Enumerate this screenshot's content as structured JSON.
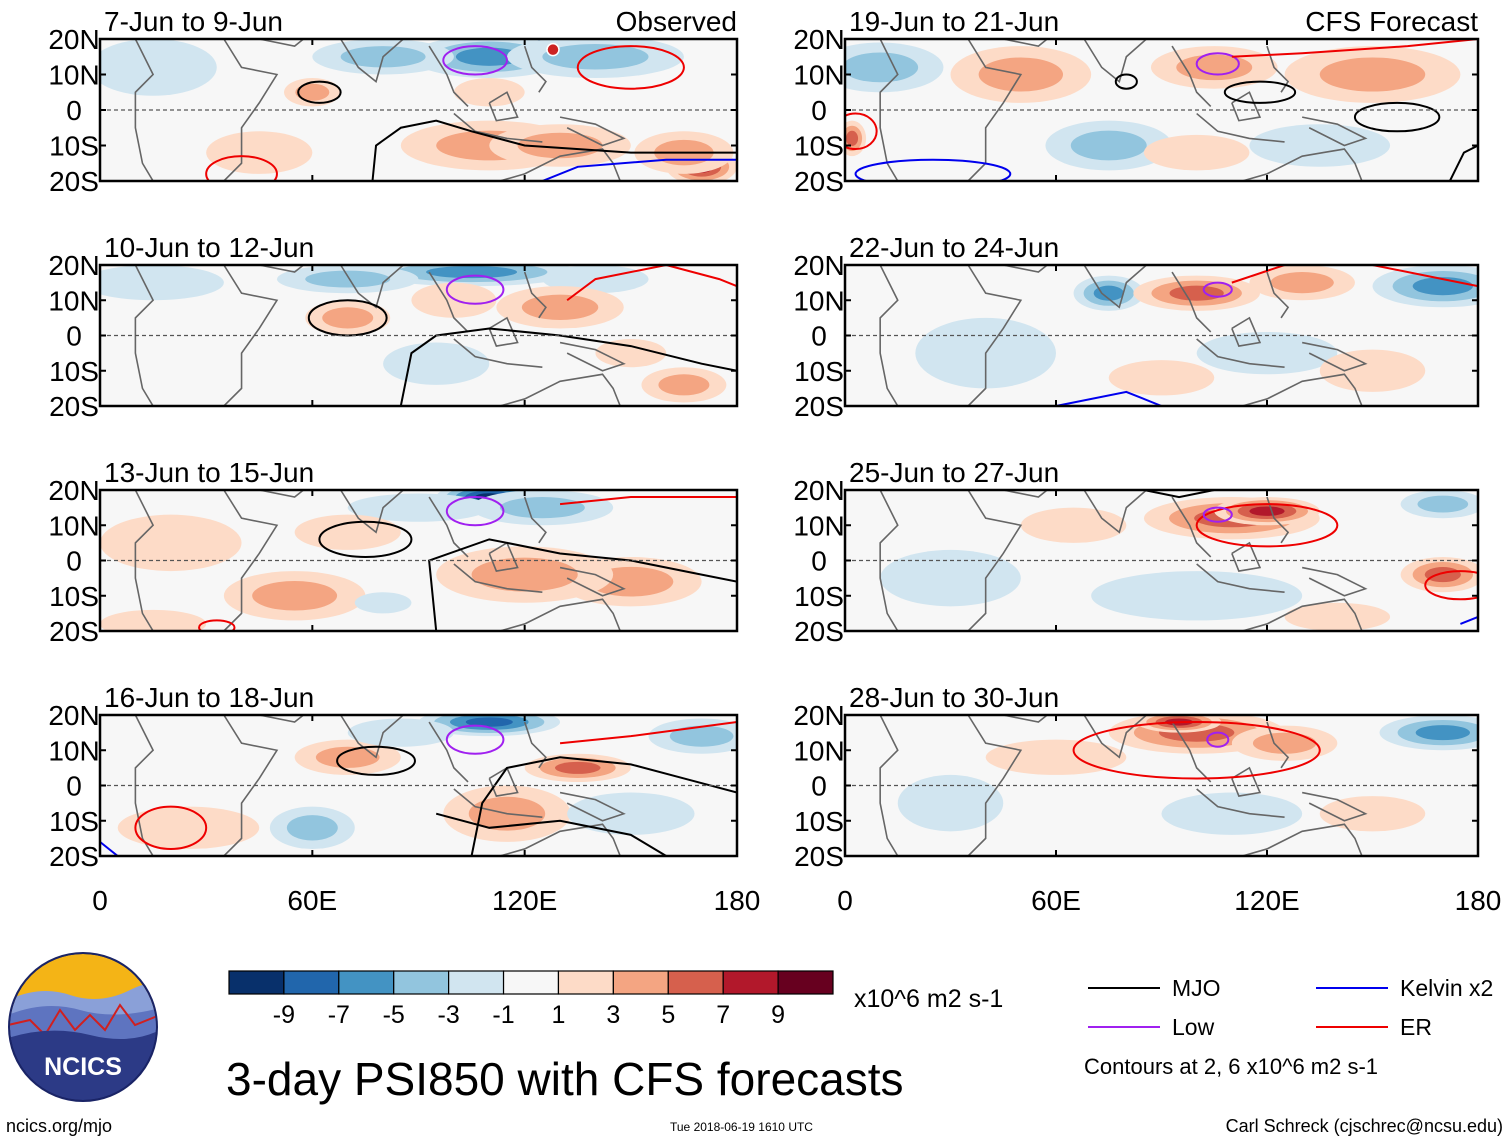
{
  "chart_data": {
    "type": "heatmap",
    "title": "3-day PSI850 with CFS forecasts",
    "variable": "PSI850",
    "units": "x10^6 m2 s-1",
    "observed_label": "Observed",
    "forecast_label": "CFS Forecast",
    "x_ticks": [
      "0",
      "60E",
      "120E",
      "180"
    ],
    "x_tick_values": [
      0,
      60,
      120,
      180
    ],
    "y_ticks": [
      "20N",
      "10N",
      "0",
      "10S",
      "20S"
    ],
    "y_tick_values": [
      20,
      10,
      0,
      -10,
      -20
    ],
    "xlim": [
      0,
      180
    ],
    "ylim": [
      -20,
      20
    ],
    "colorbar": {
      "ticks": [
        "-9",
        "-7",
        "-5",
        "-3",
        "-1",
        "1",
        "3",
        "5",
        "7",
        "9"
      ],
      "colors": [
        "#08306b",
        "#2166ac",
        "#4393c3",
        "#92c5de",
        "#d1e5f0",
        "#f7f7f7",
        "#fddbc7",
        "#f4a582",
        "#d6604d",
        "#b2182b",
        "#67001f"
      ]
    },
    "legend": [
      {
        "name": "MJO",
        "color": "#000000"
      },
      {
        "name": "Kelvin x2",
        "color": "#0000ee"
      },
      {
        "name": "Low",
        "color": "#a020f0"
      },
      {
        "name": "ER",
        "color": "#ee0000"
      }
    ],
    "contour_note": "Contours at 2, 6 x10^6 m2 s-1",
    "panels": [
      {
        "label": "7-Jun to 9-Jun",
        "group": "Observed"
      },
      {
        "label": "10-Jun to 12-Jun",
        "group": "Observed"
      },
      {
        "label": "13-Jun to 15-Jun",
        "group": "Observed"
      },
      {
        "label": "16-Jun to 18-Jun",
        "group": "Observed"
      },
      {
        "label": "19-Jun to 21-Jun",
        "group": "CFS Forecast"
      },
      {
        "label": "22-Jun to 24-Jun",
        "group": "CFS Forecast"
      },
      {
        "label": "25-Jun to 27-Jun",
        "group": "CFS Forecast"
      },
      {
        "label": "28-Jun to 30-Jun",
        "group": "CFS Forecast"
      }
    ]
  },
  "branding": {
    "logo_text": "NCICS",
    "site": "ncics.org/mjo",
    "timestamp": "Tue 2018-06-19 1610 UTC",
    "author": "Carl Schreck (cjschrec@ncsu.edu)"
  }
}
